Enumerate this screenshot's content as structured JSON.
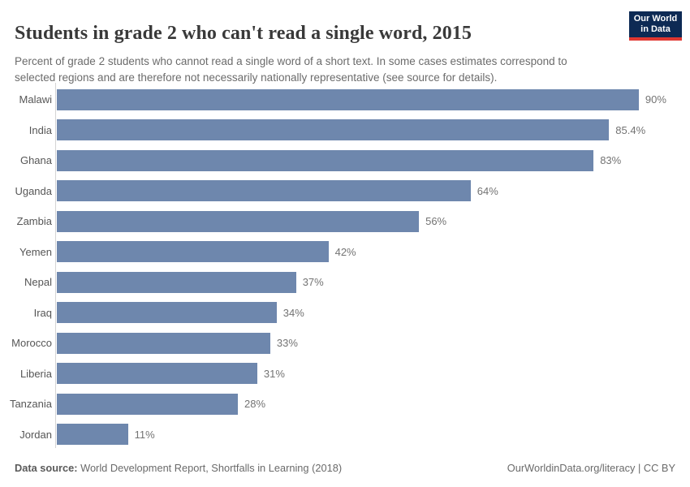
{
  "header": {
    "title": "Students in grade 2 who can't read a single word, 2015",
    "subtitle": "Percent of grade 2 students who cannot read a single word of a short text. In some cases estimates correspond to selected regions and are therefore not necessarily nationally representative (see source for details).",
    "logo": {
      "line1": "Our World",
      "line2": "in Data",
      "bg_color": "#0d2a54",
      "accent_color": "#e03731"
    }
  },
  "chart_data": {
    "type": "bar",
    "orientation": "horizontal",
    "title": "Students in grade 2 who can't read a single word, 2015",
    "categories": [
      "Malawi",
      "India",
      "Ghana",
      "Uganda",
      "Zambia",
      "Yemen",
      "Nepal",
      "Iraq",
      "Morocco",
      "Liberia",
      "Tanzania",
      "Jordan"
    ],
    "values": [
      90,
      85.4,
      83,
      64,
      56,
      42,
      37,
      34,
      33,
      31,
      28,
      11
    ],
    "value_labels": [
      "90%",
      "85.4%",
      "83%",
      "64%",
      "56%",
      "42%",
      "37%",
      "34%",
      "33%",
      "31%",
      "28%",
      "11%"
    ],
    "unit": "%",
    "xlim": [
      0,
      90
    ],
    "grid": false,
    "legend_position": "none",
    "bar_color": "#6e87ad",
    "axis_color": "#d4d4d4"
  },
  "footer": {
    "source_label": "Data source:",
    "source_value": "World Development Report, Shortfalls in Learning (2018)",
    "link_text": "OurWorldinData.org/literacy | CC BY"
  }
}
